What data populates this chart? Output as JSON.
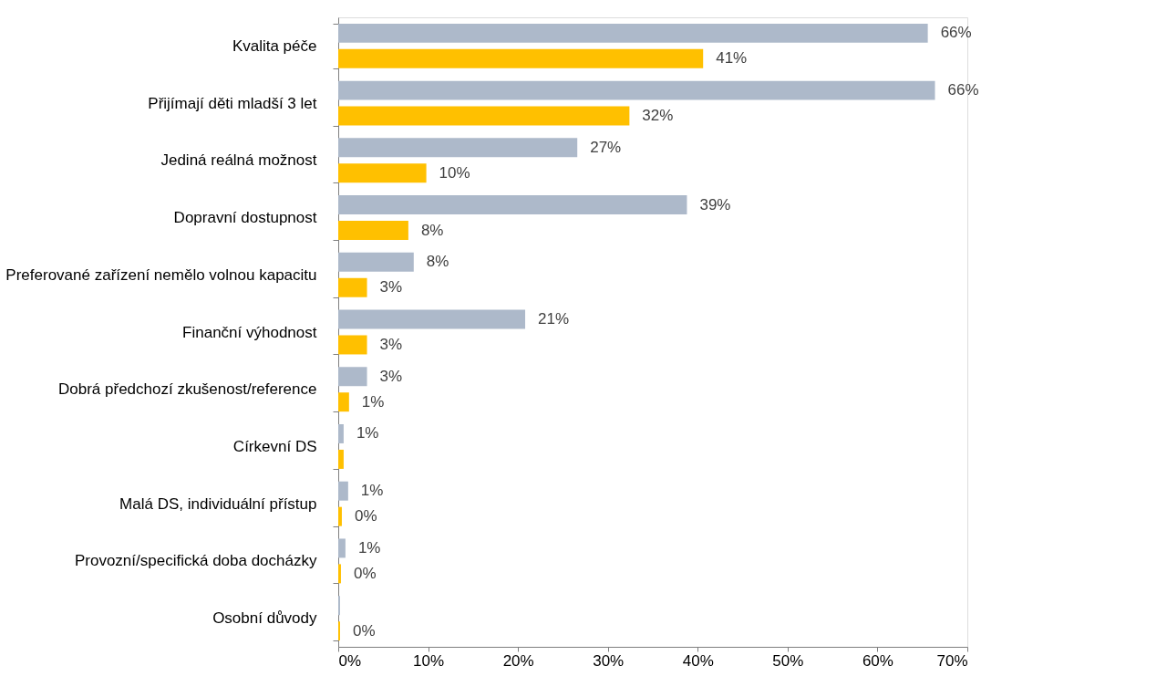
{
  "chart_data": {
    "type": "bar",
    "orientation": "horizontal",
    "categories": [
      "Kvalita péče ",
      "Přijímají děti mladší 3 let",
      "Jediná reálná možnost",
      "Dopravní dostupnost",
      "Preferované zařízení nemělo volnou kapacitu",
      "Finanční výhodnost",
      "Dobrá předchozí zkušenost/reference",
      "Církevní DS",
      "Malá DS, individuální přístup",
      "Provozní/specifická doba docházky",
      "Osobní důvody"
    ],
    "series": [
      {
        "color": "#adb9ca",
        "values": [
          65.6,
          66.4,
          26.6,
          38.8,
          8.4,
          20.8,
          3.2,
          0.6,
          1.1,
          0.8,
          0.2
        ],
        "value_labels": [
          "66%",
          "66%",
          "27%",
          "39%",
          "8%",
          "21%",
          "3%",
          "1%",
          "1%",
          "1%",
          null
        ]
      },
      {
        "color": "#ffc000",
        "values": [
          40.6,
          32.4,
          9.8,
          7.8,
          3.2,
          3.2,
          1.2,
          0.6,
          0.4,
          0.3,
          0.2
        ],
        "value_labels": [
          "41%",
          "32%",
          "10%",
          "8%",
          "3%",
          "3%",
          "1%",
          null,
          "0%",
          "0%",
          "0%"
        ]
      }
    ],
    "xlim": [
      0,
      70
    ],
    "xticks": [
      {
        "value": 0,
        "label": "0%"
      },
      {
        "value": 10,
        "label": "10%"
      },
      {
        "value": 20,
        "label": "20%"
      },
      {
        "value": 30,
        "label": "30%"
      },
      {
        "value": 40,
        "label": "40%"
      },
      {
        "value": 50,
        "label": "50%"
      },
      {
        "value": 60,
        "label": "60%"
      },
      {
        "value": 70,
        "label": "70%"
      }
    ],
    "grid": false,
    "legend": false
  }
}
